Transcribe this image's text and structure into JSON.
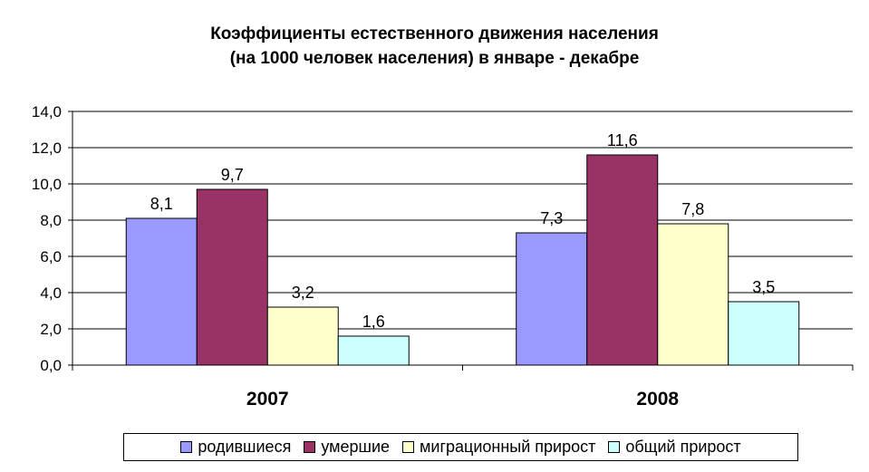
{
  "chart_data": {
    "type": "bar",
    "title": "Коэффициенты естественного движения населения\n(на 1000 человек населения) в январе - декабре",
    "title_lines": [
      "Коэффициенты естественного движения населения",
      "(на 1000 человек населения) в январе - декабре"
    ],
    "categories": [
      "2007",
      "2008"
    ],
    "series": [
      {
        "name": "родившиеся",
        "values": [
          8.1,
          7.3
        ],
        "labels": [
          "8,1",
          "7,3"
        ],
        "color": "#9999FF"
      },
      {
        "name": "умершие",
        "values": [
          9.7,
          11.6
        ],
        "labels": [
          "9,7",
          "11,6"
        ],
        "color": "#993366"
      },
      {
        "name": "миграционный прирост",
        "values": [
          3.2,
          7.8
        ],
        "labels": [
          "3,2",
          "7,8"
        ],
        "color": "#FFFFCC"
      },
      {
        "name": "общий прирост",
        "values": [
          1.6,
          3.5
        ],
        "labels": [
          "1,6",
          "3,5"
        ],
        "color": "#CCFFFF"
      }
    ],
    "ylim": [
      0,
      14
    ],
    "yticks": [
      0,
      2,
      4,
      6,
      8,
      10,
      12,
      14
    ],
    "ytick_labels": [
      "0,0",
      "2,0",
      "4,0",
      "6,0",
      "8,0",
      "10,0",
      "12,0",
      "14,0"
    ],
    "grid": true,
    "legend_position": "bottom"
  }
}
